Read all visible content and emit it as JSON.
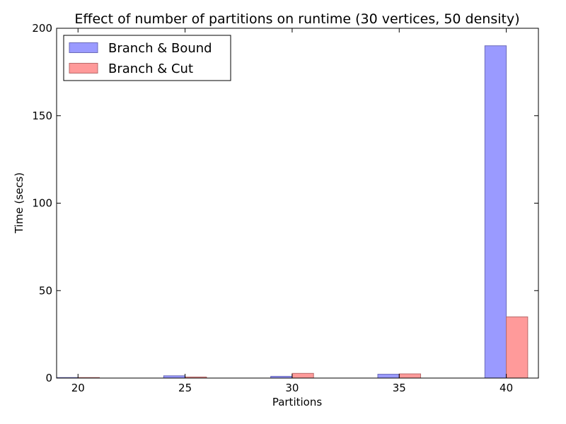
{
  "chart_data": {
    "type": "bar",
    "title": "Effect of number of partitions on runtime (30 vertices, 50 density)",
    "xlabel": "Partitions",
    "ylabel": "Time (secs)",
    "categories": [
      "20",
      "25",
      "30",
      "35",
      "40"
    ],
    "x": [
      20,
      25,
      30,
      35,
      40
    ],
    "xlim": [
      19,
      41.5
    ],
    "ylim": [
      0,
      200
    ],
    "yticks": [
      0,
      50,
      100,
      150,
      200
    ],
    "xticks": [
      20,
      25,
      30,
      35,
      40
    ],
    "grid": false,
    "legend_position": "top-left",
    "series": [
      {
        "name": "Branch & Bound",
        "color": "#9a9aff",
        "edge": "#6b6bb8",
        "values": [
          0.3,
          1.3,
          1.0,
          2.2,
          190
        ]
      },
      {
        "name": "Branch & Cut",
        "color": "#ff9a9a",
        "edge": "#b86b6b",
        "values": [
          0.3,
          0.6,
          2.7,
          2.4,
          35
        ]
      }
    ]
  }
}
